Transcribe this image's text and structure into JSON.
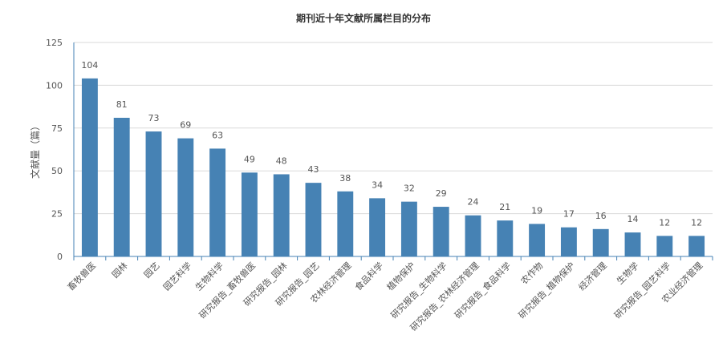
{
  "chart_data": {
    "type": "bar",
    "title": "期刊近十年文献所属栏目的分布",
    "ylabel": "文献量（篇）",
    "xlabel": "",
    "ylim": [
      0,
      125
    ],
    "yticks": [
      0,
      25,
      50,
      75,
      100,
      125
    ],
    "grid": true,
    "bar_color": "#4682b4",
    "categories": [
      "畜牧兽医",
      "园林",
      "园艺",
      "园艺科学",
      "生物科学",
      "研究报告_畜牧兽医",
      "研究报告_园林",
      "研究报告_园艺",
      "农林经济管理",
      "食品科学",
      "植物保护",
      "研究报告_生物科学",
      "研究报告_农林经济管理",
      "研究报告_食品科学",
      "农作物",
      "研究报告_植物保护",
      "经济管理",
      "生物学",
      "研究报告_园艺科学",
      "农业经济管理"
    ],
    "values": [
      104,
      81,
      73,
      69,
      63,
      49,
      48,
      43,
      38,
      34,
      32,
      29,
      24,
      21,
      19,
      17,
      16,
      14,
      12,
      12
    ]
  }
}
